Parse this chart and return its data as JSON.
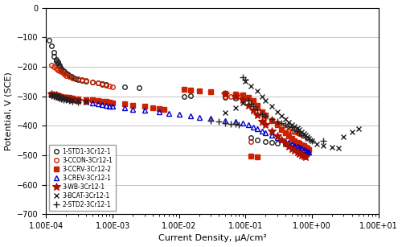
{
  "title": "",
  "xlabel": "Current Density, μA/cm²",
  "ylabel": "Potential, V (SCE)",
  "ylim": [
    -700,
    0
  ],
  "yticks": [
    0,
    -100,
    -200,
    -300,
    -400,
    -500,
    -600,
    -700
  ],
  "background": "#ffffff",
  "series": [
    {
      "label": "1-STD1-3Cr12-1",
      "color": "#222222",
      "marker": "o",
      "fillstyle": "none",
      "markersize": 4,
      "data": [
        [
          0.00011,
          -110
        ],
        [
          0.00012,
          -130
        ],
        [
          0.00013,
          -150
        ],
        [
          0.00013,
          -165
        ],
        [
          0.00014,
          -175
        ],
        [
          0.00014,
          -180
        ],
        [
          0.00015,
          -185
        ],
        [
          0.00015,
          -190
        ],
        [
          0.00016,
          -195
        ],
        [
          0.00016,
          -200
        ],
        [
          0.00017,
          -205
        ],
        [
          0.00017,
          -210
        ],
        [
          0.00018,
          -215
        ],
        [
          0.00019,
          -218
        ],
        [
          0.0002,
          -222
        ],
        [
          0.00021,
          -226
        ],
        [
          0.00022,
          -230
        ],
        [
          0.00024,
          -234
        ],
        [
          0.00026,
          -238
        ],
        [
          0.00028,
          -242
        ],
        [
          0.0003,
          -245
        ],
        [
          0.00035,
          -248
        ],
        [
          0.0004,
          -250
        ],
        [
          0.0005,
          -253
        ],
        [
          0.0006,
          -256
        ],
        [
          0.0007,
          -258
        ],
        [
          0.0008,
          -260
        ],
        [
          0.0015,
          -268
        ],
        [
          0.0025,
          -272
        ],
        [
          0.012,
          -300
        ],
        [
          0.015,
          -298
        ],
        [
          0.05,
          -305
        ],
        [
          0.07,
          -308
        ],
        [
          0.09,
          -310
        ],
        [
          0.12,
          -440
        ],
        [
          0.15,
          -448
        ],
        [
          0.2,
          -455
        ],
        [
          0.25,
          -458
        ],
        [
          0.3,
          -460
        ],
        [
          0.4,
          -462
        ],
        [
          0.5,
          -465
        ],
        [
          0.6,
          -468
        ]
      ]
    },
    {
      "label": "3-CCON-3Cr12-1",
      "color": "#cc2200",
      "marker": "o",
      "fillstyle": "none",
      "markersize": 4,
      "data": [
        [
          0.00012,
          -195
        ],
        [
          0.00013,
          -200
        ],
        [
          0.00014,
          -205
        ],
        [
          0.00015,
          -210
        ],
        [
          0.00016,
          -215
        ],
        [
          0.00017,
          -218
        ],
        [
          0.00018,
          -222
        ],
        [
          0.00019,
          -226
        ],
        [
          0.0002,
          -230
        ],
        [
          0.00022,
          -234
        ],
        [
          0.00025,
          -238
        ],
        [
          0.0003,
          -242
        ],
        [
          0.00035,
          -245
        ],
        [
          0.0004,
          -248
        ],
        [
          0.0005,
          -252
        ],
        [
          0.0006,
          -256
        ],
        [
          0.0007,
          -260
        ],
        [
          0.0008,
          -263
        ],
        [
          0.0009,
          -266
        ],
        [
          0.001,
          -268
        ],
        [
          0.05,
          -302
        ],
        [
          0.06,
          -300
        ],
        [
          0.08,
          -298
        ],
        [
          0.09,
          -300
        ],
        [
          0.11,
          -305
        ],
        [
          0.13,
          -320
        ],
        [
          0.15,
          -340
        ],
        [
          0.18,
          -360
        ],
        [
          0.2,
          -370
        ],
        [
          0.25,
          -380
        ],
        [
          0.3,
          -390
        ],
        [
          0.35,
          -400
        ],
        [
          0.4,
          -410
        ],
        [
          0.45,
          -415
        ],
        [
          0.5,
          -418
        ],
        [
          0.55,
          -422
        ],
        [
          0.6,
          -425
        ],
        [
          0.65,
          -428
        ],
        [
          0.7,
          -430
        ],
        [
          0.12,
          -455
        ]
      ]
    },
    {
      "label": "3-CCRV-3Cr12-2",
      "color": "#cc2200",
      "marker": "s",
      "fillstyle": "full",
      "markersize": 4,
      "data": [
        [
          0.00012,
          -292
        ],
        [
          0.00013,
          -295
        ],
        [
          0.00014,
          -297
        ],
        [
          0.00015,
          -299
        ],
        [
          0.00016,
          -300
        ],
        [
          0.00017,
          -302
        ],
        [
          0.00018,
          -303
        ],
        [
          0.0002,
          -304
        ],
        [
          0.00022,
          -305
        ],
        [
          0.00025,
          -307
        ],
        [
          0.0003,
          -309
        ],
        [
          0.0004,
          -311
        ],
        [
          0.0005,
          -313
        ],
        [
          0.0006,
          -315
        ],
        [
          0.0007,
          -317
        ],
        [
          0.0008,
          -319
        ],
        [
          0.0009,
          -321
        ],
        [
          0.001,
          -323
        ],
        [
          0.0015,
          -327
        ],
        [
          0.002,
          -331
        ],
        [
          0.003,
          -335
        ],
        [
          0.004,
          -339
        ],
        [
          0.005,
          -342
        ],
        [
          0.006,
          -345
        ],
        [
          0.012,
          -278
        ],
        [
          0.015,
          -280
        ],
        [
          0.02,
          -283
        ],
        [
          0.03,
          -286
        ],
        [
          0.05,
          -290
        ],
        [
          0.07,
          -293
        ],
        [
          0.09,
          -296
        ],
        [
          0.11,
          -303
        ],
        [
          0.13,
          -316
        ],
        [
          0.15,
          -330
        ],
        [
          0.18,
          -352
        ],
        [
          0.2,
          -365
        ],
        [
          0.25,
          -382
        ],
        [
          0.3,
          -398
        ],
        [
          0.35,
          -412
        ],
        [
          0.4,
          -425
        ],
        [
          0.45,
          -435
        ],
        [
          0.5,
          -444
        ],
        [
          0.55,
          -450
        ],
        [
          0.6,
          -456
        ],
        [
          0.65,
          -460
        ],
        [
          0.7,
          -465
        ],
        [
          0.75,
          -468
        ],
        [
          0.8,
          -472
        ],
        [
          0.85,
          -476
        ],
        [
          0.9,
          -480
        ],
        [
          0.12,
          -502
        ],
        [
          0.15,
          -505
        ]
      ]
    },
    {
      "label": "3-CREV-3Cr12-1",
      "color": "#0000cc",
      "marker": "^",
      "fillstyle": "none",
      "markersize": 4,
      "data": [
        [
          0.00012,
          -293
        ],
        [
          0.00013,
          -295
        ],
        [
          0.00014,
          -297
        ],
        [
          0.00015,
          -299
        ],
        [
          0.00016,
          -301
        ],
        [
          0.00017,
          -303
        ],
        [
          0.00018,
          -305
        ],
        [
          0.0002,
          -307
        ],
        [
          0.00022,
          -309
        ],
        [
          0.00025,
          -311
        ],
        [
          0.0003,
          -314
        ],
        [
          0.0004,
          -318
        ],
        [
          0.0005,
          -322
        ],
        [
          0.0006,
          -325
        ],
        [
          0.0007,
          -328
        ],
        [
          0.0008,
          -330
        ],
        [
          0.0009,
          -333
        ],
        [
          0.001,
          -335
        ],
        [
          0.0015,
          -340
        ],
        [
          0.002,
          -344
        ],
        [
          0.003,
          -349
        ],
        [
          0.005,
          -354
        ],
        [
          0.007,
          -358
        ],
        [
          0.01,
          -362
        ],
        [
          0.015,
          -367
        ],
        [
          0.02,
          -371
        ],
        [
          0.03,
          -376
        ],
        [
          0.05,
          -382
        ],
        [
          0.07,
          -387
        ],
        [
          0.09,
          -392
        ],
        [
          0.11,
          -398
        ],
        [
          0.13,
          -404
        ],
        [
          0.15,
          -410
        ],
        [
          0.18,
          -418
        ],
        [
          0.2,
          -424
        ],
        [
          0.25,
          -432
        ],
        [
          0.3,
          -440
        ],
        [
          0.35,
          -447
        ],
        [
          0.4,
          -453
        ],
        [
          0.45,
          -458
        ],
        [
          0.5,
          -463
        ],
        [
          0.55,
          -467
        ],
        [
          0.6,
          -471
        ],
        [
          0.65,
          -474
        ],
        [
          0.7,
          -477
        ],
        [
          0.75,
          -480
        ],
        [
          0.8,
          -483
        ],
        [
          0.85,
          -486
        ],
        [
          0.9,
          -489
        ]
      ]
    },
    {
      "label": "3-WB-3Cr12-1",
      "color": "#aa1100",
      "marker": "x",
      "fillstyle": "full",
      "markersize": 5,
      "is_wb": true,
      "data": [
        [
          0.00012,
          -293
        ],
        [
          0.00013,
          -295
        ],
        [
          0.00014,
          -297
        ],
        [
          0.00015,
          -300
        ],
        [
          0.00016,
          -302
        ],
        [
          0.00017,
          -304
        ],
        [
          0.00018,
          -306
        ],
        [
          0.0002,
          -308
        ],
        [
          0.00022,
          -310
        ],
        [
          0.00025,
          -312
        ],
        [
          0.0003,
          -315
        ],
        [
          0.0004,
          -318
        ],
        [
          0.05,
          -294
        ],
        [
          0.07,
          -302
        ],
        [
          0.09,
          -312
        ],
        [
          0.11,
          -330
        ],
        [
          0.13,
          -348
        ],
        [
          0.15,
          -364
        ],
        [
          0.18,
          -385
        ],
        [
          0.2,
          -398
        ],
        [
          0.25,
          -418
        ],
        [
          0.3,
          -435
        ],
        [
          0.35,
          -448
        ],
        [
          0.4,
          -460
        ],
        [
          0.45,
          -470
        ],
        [
          0.5,
          -478
        ],
        [
          0.55,
          -484
        ],
        [
          0.6,
          -490
        ],
        [
          0.65,
          -495
        ],
        [
          0.7,
          -500
        ],
        [
          0.75,
          -504
        ],
        [
          0.8,
          -507
        ]
      ]
    },
    {
      "label": "3-BCAT-3Cr12-1",
      "color": "#222222",
      "marker": "x",
      "fillstyle": "full",
      "markersize": 5,
      "is_bcat": true,
      "data": [
        [
          0.00012,
          -295
        ],
        [
          0.00013,
          -297
        ],
        [
          0.00014,
          -299
        ],
        [
          0.00015,
          -301
        ],
        [
          0.00016,
          -303
        ],
        [
          0.00017,
          -305
        ],
        [
          0.00018,
          -307
        ],
        [
          0.0002,
          -309
        ],
        [
          0.00022,
          -311
        ],
        [
          0.00025,
          -313
        ],
        [
          0.0003,
          -316
        ],
        [
          0.0004,
          -319
        ],
        [
          0.05,
          -357
        ],
        [
          0.07,
          -340
        ],
        [
          0.09,
          -322
        ],
        [
          0.1,
          -250
        ],
        [
          0.12,
          -265
        ],
        [
          0.15,
          -282
        ],
        [
          0.18,
          -300
        ],
        [
          0.2,
          -315
        ],
        [
          0.25,
          -335
        ],
        [
          0.3,
          -352
        ],
        [
          0.35,
          -366
        ],
        [
          0.4,
          -378
        ],
        [
          0.45,
          -388
        ],
        [
          0.5,
          -396
        ],
        [
          0.55,
          -402
        ],
        [
          0.6,
          -408
        ],
        [
          0.65,
          -414
        ],
        [
          0.7,
          -420
        ],
        [
          0.75,
          -426
        ],
        [
          0.8,
          -432
        ],
        [
          0.85,
          -438
        ],
        [
          0.9,
          -444
        ],
        [
          1.0,
          -452
        ],
        [
          1.2,
          -462
        ],
        [
          1.5,
          -468
        ],
        [
          2.0,
          -472
        ],
        [
          2.5,
          -476
        ],
        [
          3.0,
          -438
        ],
        [
          4.0,
          -420
        ],
        [
          5.0,
          -410
        ]
      ]
    },
    {
      "label": "2-STD2-3Cr12-1",
      "color": "#222222",
      "marker": "+",
      "fillstyle": "full",
      "markersize": 6,
      "data": [
        [
          0.00012,
          -298
        ],
        [
          0.00013,
          -300
        ],
        [
          0.00014,
          -302
        ],
        [
          0.00015,
          -305
        ],
        [
          0.00016,
          -307
        ],
        [
          0.00017,
          -309
        ],
        [
          0.00018,
          -311
        ],
        [
          0.0002,
          -313
        ],
        [
          0.00022,
          -315
        ],
        [
          0.00025,
          -317
        ],
        [
          0.0003,
          -320
        ],
        [
          0.03,
          -382
        ],
        [
          0.04,
          -387
        ],
        [
          0.05,
          -390
        ],
        [
          0.06,
          -393
        ],
        [
          0.07,
          -395
        ],
        [
          0.08,
          -397
        ],
        [
          0.09,
          -237
        ],
        [
          0.1,
          -245
        ],
        [
          0.11,
          -315
        ],
        [
          0.12,
          -326
        ],
        [
          0.13,
          -335
        ],
        [
          0.15,
          -346
        ],
        [
          0.18,
          -360
        ],
        [
          0.2,
          -368
        ],
        [
          0.25,
          -378
        ],
        [
          0.3,
          -386
        ],
        [
          0.35,
          -392
        ],
        [
          0.4,
          -398
        ],
        [
          0.45,
          -402
        ],
        [
          0.5,
          -406
        ],
        [
          0.55,
          -412
        ],
        [
          0.6,
          -418
        ],
        [
          0.65,
          -425
        ],
        [
          0.7,
          -432
        ],
        [
          0.8,
          -440
        ],
        [
          0.9,
          -445
        ],
        [
          1.0,
          -450
        ],
        [
          1.5,
          -452
        ]
      ]
    }
  ]
}
